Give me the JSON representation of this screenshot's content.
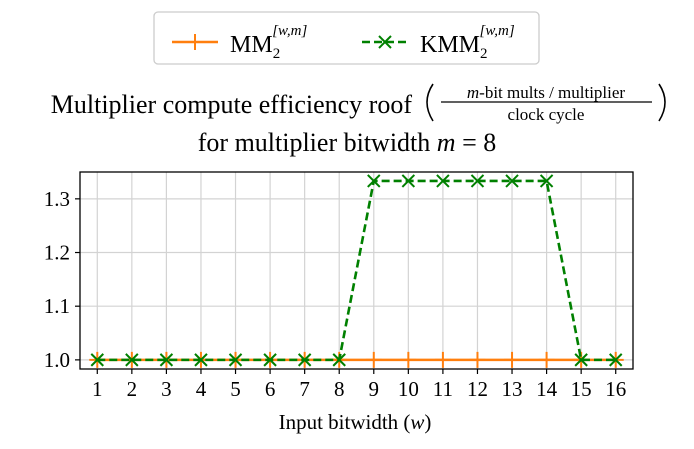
{
  "chart_data": {
    "type": "line",
    "title_main": "Multiplier compute efficiency roof",
    "title_fraction_numerator_var": "m",
    "title_fraction_numerator_rest": "-bit mults / multiplier",
    "title_fraction_denominator": "clock cycle",
    "title_line2_text": "for multiplier bitwidth ",
    "title_line2_var": "m",
    "title_line2_eq": " = 8",
    "xlabel_text": "Input bitwidth (",
    "xlabel_var": "w",
    "xlabel_close": ")",
    "x": [
      1,
      2,
      3,
      4,
      5,
      6,
      7,
      8,
      9,
      10,
      11,
      12,
      13,
      14,
      15,
      16
    ],
    "xticks": [
      "1",
      "2",
      "3",
      "4",
      "5",
      "6",
      "7",
      "8",
      "9",
      "10",
      "11",
      "12",
      "13",
      "14",
      "15",
      "16"
    ],
    "yticks": [
      "1.0",
      "1.1",
      "1.2",
      "1.3"
    ],
    "ytick_values": [
      1.0,
      1.1,
      1.2,
      1.3
    ],
    "xlim": [
      0.5,
      16.5
    ],
    "ylim": [
      0.983,
      1.35
    ],
    "grid": true,
    "legend_placement": "top-center",
    "series": [
      {
        "name": "MM",
        "name_sub": "2",
        "name_sup": "[w,m]",
        "color": "#ff7f0e",
        "linestyle": "solid",
        "marker": "+",
        "values": [
          1,
          1,
          1,
          1,
          1,
          1,
          1,
          1,
          1,
          1,
          1,
          1,
          1,
          1,
          1,
          1
        ]
      },
      {
        "name": "KMM",
        "name_sub": "2",
        "name_sup": "[w,m]",
        "color": "#008000",
        "linestyle": "dashed",
        "marker": "x",
        "values": [
          1,
          1,
          1,
          1,
          1,
          1,
          1,
          1,
          1.3333,
          1.3333,
          1.3333,
          1.3333,
          1.3333,
          1.3333,
          1,
          1
        ]
      }
    ]
  }
}
